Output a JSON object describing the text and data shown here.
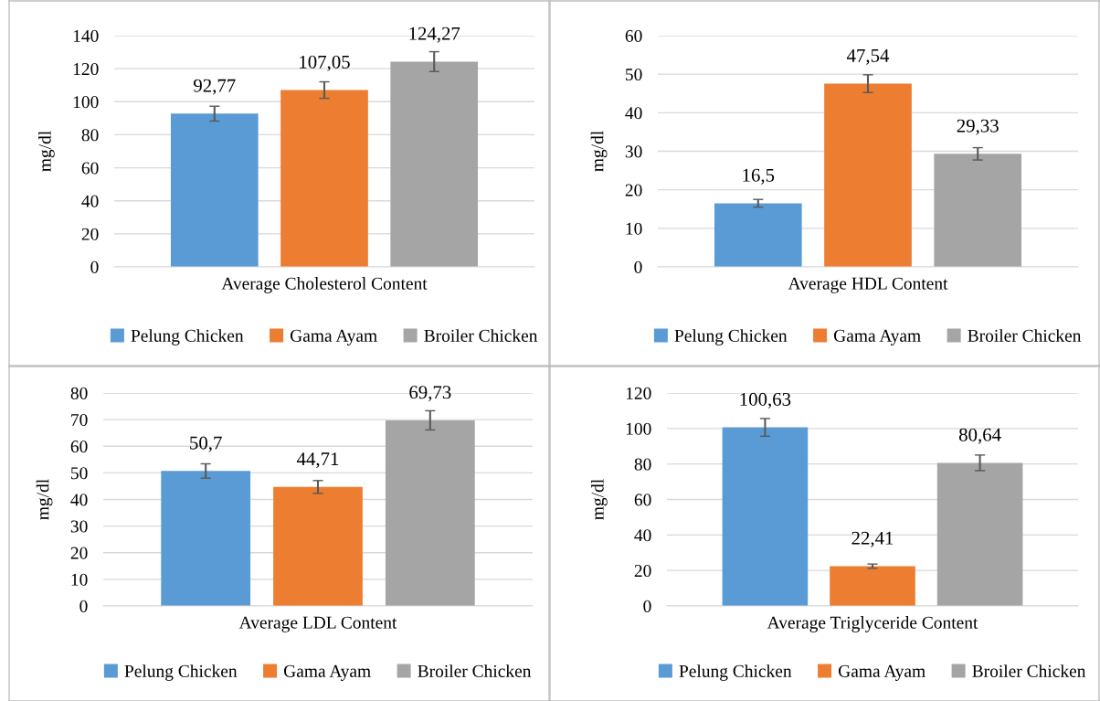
{
  "chart_data": [
    {
      "type": "bar",
      "ylabel": "mg/dl",
      "categories": [
        "Average Cholesterol Content"
      ],
      "ylim": [
        0,
        140
      ],
      "yticks": [
        0,
        20,
        40,
        60,
        80,
        100,
        120,
        140
      ],
      "grid": "y",
      "legend": "bottom",
      "series": [
        {
          "name": "Pelung Chicken",
          "color": "#5b9bd5",
          "values": [
            92.77
          ],
          "errors": [
            4.5
          ],
          "value_labels": [
            "92,77"
          ]
        },
        {
          "name": "Gama Ayam",
          "color": "#ed7d31",
          "values": [
            107.05
          ],
          "errors": [
            5
          ],
          "value_labels": [
            "107,05"
          ]
        },
        {
          "name": "Broiler Chicken",
          "color": "#a5a5a5",
          "values": [
            124.27
          ],
          "errors": [
            6
          ],
          "value_labels": [
            "124,27"
          ]
        }
      ]
    },
    {
      "type": "bar",
      "ylabel": "mg/dl",
      "categories": [
        "Average HDL Content"
      ],
      "ylim": [
        0,
        60
      ],
      "yticks": [
        0,
        10,
        20,
        30,
        40,
        50,
        60
      ],
      "grid": "y",
      "legend": "bottom",
      "series": [
        {
          "name": "Pelung Chicken",
          "color": "#5b9bd5",
          "values": [
            16.5
          ],
          "errors": [
            1
          ],
          "value_labels": [
            "16,5"
          ]
        },
        {
          "name": "Gama Ayam",
          "color": "#ed7d31",
          "values": [
            47.54
          ],
          "errors": [
            2.3
          ],
          "value_labels": [
            "47,54"
          ]
        },
        {
          "name": "Broiler Chicken",
          "color": "#a5a5a5",
          "values": [
            29.33
          ],
          "errors": [
            1.6
          ],
          "value_labels": [
            "29,33"
          ]
        }
      ]
    },
    {
      "type": "bar",
      "ylabel": "mg/dl",
      "categories": [
        "Average LDL Content"
      ],
      "ylim": [
        0,
        80
      ],
      "yticks": [
        0,
        10,
        20,
        30,
        40,
        50,
        60,
        70,
        80
      ],
      "grid": "y",
      "legend": "bottom",
      "series": [
        {
          "name": "Pelung Chicken",
          "color": "#5b9bd5",
          "values": [
            50.7
          ],
          "errors": [
            2.7
          ],
          "value_labels": [
            "50,7"
          ]
        },
        {
          "name": "Gama Ayam",
          "color": "#ed7d31",
          "values": [
            44.71
          ],
          "errors": [
            2.4
          ],
          "value_labels": [
            "44,71"
          ]
        },
        {
          "name": "Broiler Chicken",
          "color": "#a5a5a5",
          "values": [
            69.73
          ],
          "errors": [
            3.6
          ],
          "value_labels": [
            "69,73"
          ]
        }
      ]
    },
    {
      "type": "bar",
      "ylabel": "mg/dl",
      "categories": [
        "Average Triglyceride Content"
      ],
      "ylim": [
        0,
        120
      ],
      "yticks": [
        0,
        20,
        40,
        60,
        80,
        100,
        120
      ],
      "grid": "y",
      "legend": "bottom",
      "series": [
        {
          "name": "Pelung Chicken",
          "color": "#5b9bd5",
          "values": [
            100.63
          ],
          "errors": [
            5
          ],
          "value_labels": [
            "100,63"
          ]
        },
        {
          "name": "Gama Ayam",
          "color": "#ed7d31",
          "values": [
            22.41
          ],
          "errors": [
            1.2
          ],
          "value_labels": [
            "22,41"
          ]
        },
        {
          "name": "Broiler Chicken",
          "color": "#a5a5a5",
          "values": [
            80.64
          ],
          "errors": [
            4.4
          ],
          "value_labels": [
            "80,64"
          ]
        }
      ]
    }
  ]
}
